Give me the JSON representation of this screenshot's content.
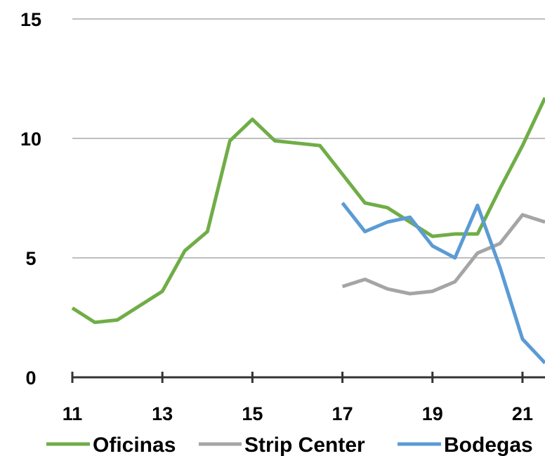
{
  "chart_data": {
    "type": "line",
    "title": "",
    "xlabel": "",
    "ylabel": "",
    "xlim": [
      11,
      21.5
    ],
    "ylim": [
      0,
      15
    ],
    "x_ticks": [
      "11",
      "13",
      "15",
      "17",
      "19",
      "21"
    ],
    "y_ticks": [
      "0",
      "5",
      "10",
      "15"
    ],
    "grid": "horizontal",
    "legend": "bottom",
    "series": [
      {
        "name": "Oficinas",
        "color": "#70ad47",
        "x": [
          11,
          11.5,
          12,
          12.5,
          13,
          13.5,
          14,
          14.5,
          15,
          15.5,
          16,
          16.5,
          17,
          17.5,
          18,
          18.5,
          19,
          19.5,
          20,
          20.5,
          21,
          21.5
        ],
        "y": [
          2.9,
          2.3,
          2.4,
          3.0,
          3.6,
          5.3,
          6.1,
          9.9,
          10.8,
          9.9,
          9.8,
          9.7,
          8.5,
          7.3,
          7.1,
          6.5,
          5.9,
          6.0,
          6.0,
          7.9,
          9.7,
          11.7
        ]
      },
      {
        "name": "Strip Center",
        "color": "#a5a5a5",
        "x": [
          17,
          17.5,
          18,
          18.5,
          19,
          19.5,
          20,
          20.5,
          21,
          21.5
        ],
        "y": [
          3.8,
          4.1,
          3.7,
          3.5,
          3.6,
          4.0,
          5.2,
          5.6,
          6.8,
          6.5
        ]
      },
      {
        "name": "Bodegas",
        "color": "#5b9bd5",
        "x": [
          17,
          17.5,
          18,
          18.5,
          19,
          19.5,
          20,
          20.5,
          21,
          21.5
        ],
        "y": [
          7.3,
          6.1,
          6.5,
          6.7,
          5.5,
          5.0,
          7.2,
          4.6,
          1.6,
          0.6
        ]
      }
    ]
  }
}
